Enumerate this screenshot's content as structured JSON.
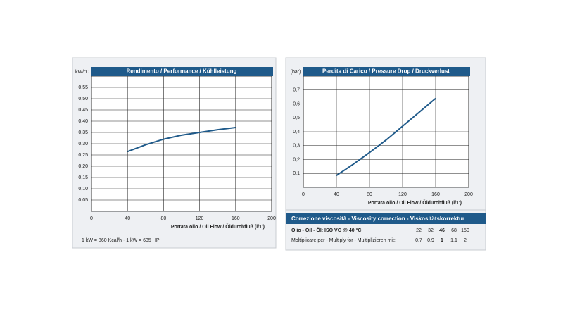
{
  "chart_data": [
    {
      "type": "line",
      "title": "Rendimento / Performance / Kühlleistung",
      "ylabel": "kW/°C",
      "xlabel": "Portata olio / Oil Flow / Öldurchfluß   (l/1')",
      "x": [
        40,
        60,
        80,
        100,
        120,
        140,
        160
      ],
      "values": [
        0.265,
        0.295,
        0.32,
        0.338,
        0.35,
        0.362,
        0.372
      ],
      "color": "#1f5a8a",
      "xlim": [
        0,
        200
      ],
      "xticks": [
        0,
        40,
        80,
        120,
        160,
        200
      ],
      "ylim": [
        0,
        0.6
      ],
      "yticks": [
        {
          "value": 0.05,
          "label": "0,05"
        },
        {
          "value": 0.1,
          "label": "0,10"
        },
        {
          "value": 0.15,
          "label": "0,15"
        },
        {
          "value": 0.2,
          "label": "0,20"
        },
        {
          "value": 0.25,
          "label": "0,25"
        },
        {
          "value": 0.3,
          "label": "0,30"
        },
        {
          "value": 0.35,
          "label": "0,35"
        },
        {
          "value": 0.4,
          "label": "0,40"
        },
        {
          "value": 0.45,
          "label": "0,45"
        },
        {
          "value": 0.5,
          "label": "0,50"
        },
        {
          "value": 0.55,
          "label": "0,55"
        }
      ],
      "grid": true
    },
    {
      "type": "line",
      "title": "Perdita di Carico / Pressure Drop / Druckverlust",
      "ylabel": "(bar)",
      "xlabel": "Portata olio / Oil Flow / Öldurchfluß   (l/1')",
      "x": [
        40,
        60,
        80,
        100,
        120,
        140,
        160
      ],
      "values": [
        0.085,
        0.165,
        0.25,
        0.34,
        0.44,
        0.54,
        0.64
      ],
      "color": "#1f5a8a",
      "xlim": [
        0,
        200
      ],
      "xticks": [
        0,
        40,
        80,
        120,
        160,
        200
      ],
      "ylim": [
        0,
        0.8
      ],
      "yticks": [
        {
          "value": 0.1,
          "label": "0,1"
        },
        {
          "value": 0.2,
          "label": "0,2"
        },
        {
          "value": 0.3,
          "label": "0,3"
        },
        {
          "value": 0.4,
          "label": "0,4"
        },
        {
          "value": 0.5,
          "label": "0,5"
        },
        {
          "value": 0.6,
          "label": "0,6"
        },
        {
          "value": 0.7,
          "label": "0,7"
        }
      ],
      "grid": true
    }
  ],
  "note": "1 kW = 860 Kcal/h  - 1 kW = 635 HP",
  "viscosity": {
    "title": "Correzione viscosità - Viscosity correction - Viskositätskorrektur",
    "rows": [
      [
        "Olio - Oil - Öl: ISO VG @ 40 °C",
        "22",
        "32",
        "46",
        "68",
        "150"
      ],
      [
        "Moltiplicare per - Multiply for - Multiplizieren mit:",
        "0,7",
        "0,9",
        "1",
        "1,1",
        "2"
      ]
    ]
  }
}
